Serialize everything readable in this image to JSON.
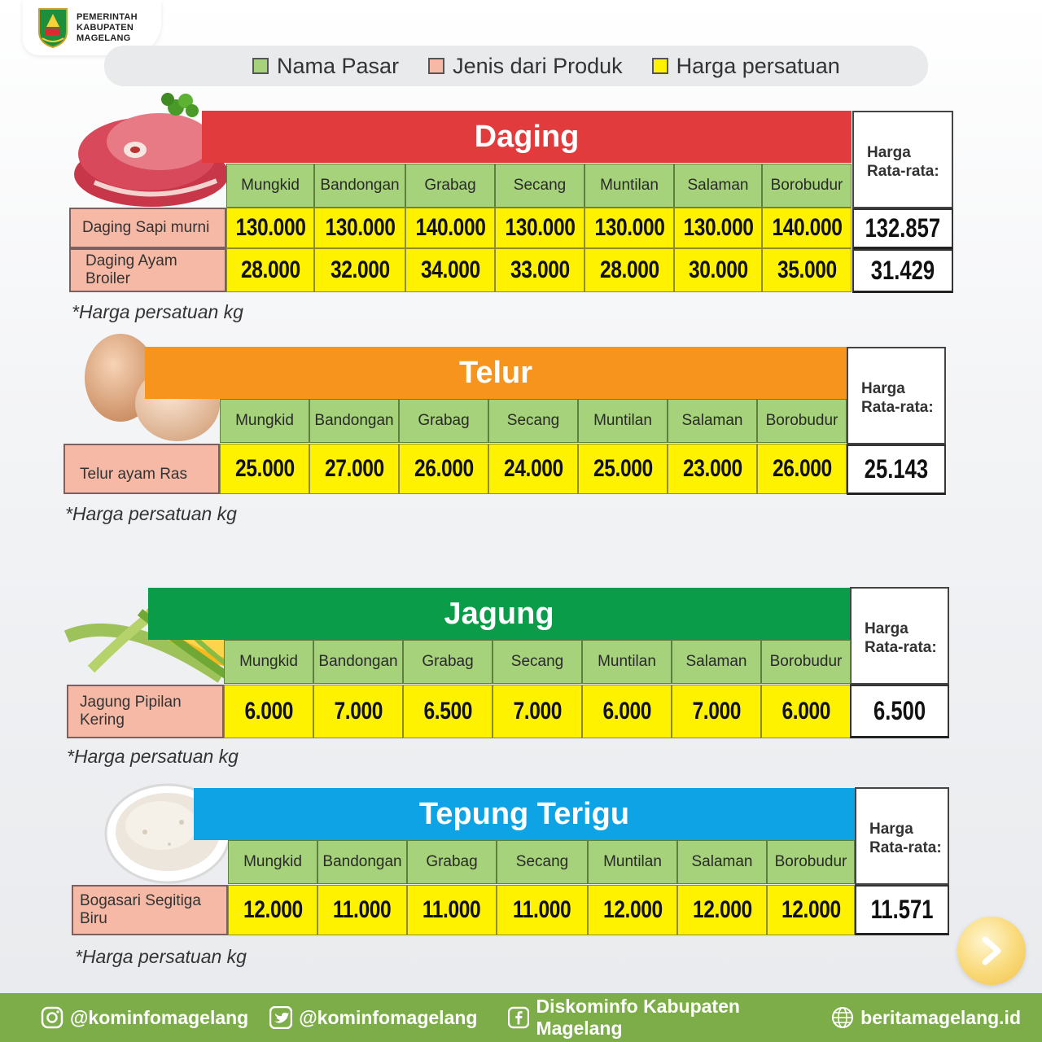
{
  "header": {
    "logo_lines": [
      "PEMERINTAH",
      "KABUPATEN",
      "MAGELANG"
    ]
  },
  "legend": [
    {
      "label": "Nama Pasar",
      "color": "#a5d27a"
    },
    {
      "label": "Jenis dari Produk",
      "color": "#f6b9a6"
    },
    {
      "label": "Harga persatuan",
      "color": "#fff200"
    }
  ],
  "avg_label_1": "Harga",
  "avg_label_2": "Rata-rata:",
  "markets": [
    "Mungkid",
    "Bandongan",
    "Grabag",
    "Secang",
    "Muntilan",
    "Salaman",
    "Borobudur"
  ],
  "sections": [
    {
      "title": "Daging",
      "color": "#e23b3e",
      "illustration": "meat-illustration",
      "note": "*Harga persatuan kg",
      "products": [
        {
          "name": "Daging Sapi murni",
          "prices": [
            "130.000",
            "130.000",
            "140.000",
            "130.000",
            "130.000",
            "130.000",
            "140.000"
          ],
          "average": "132.857"
        },
        {
          "name": "Daging Ayam Broiler",
          "prices": [
            "28.000",
            "32.000",
            "34.000",
            "33.000",
            "28.000",
            "30.000",
            "35.000"
          ],
          "average": "31.429"
        }
      ]
    },
    {
      "title": "Telur",
      "color": "#f7941d",
      "illustration": "egg-illustration",
      "note": "*Harga persatuan kg",
      "products": [
        {
          "name": "Telur ayam Ras",
          "prices": [
            "25.000",
            "27.000",
            "26.000",
            "24.000",
            "25.000",
            "23.000",
            "26.000"
          ],
          "average": "25.143"
        }
      ]
    },
    {
      "title": "Jagung",
      "color": "#0b9c4a",
      "illustration": "corn-illustration",
      "note": "*Harga persatuan kg",
      "products": [
        {
          "name": "Jagung Pipilan Kering",
          "prices": [
            "6.000",
            "7.000",
            "6.500",
            "7.000",
            "6.000",
            "7.000",
            "6.000"
          ],
          "average": "6.500"
        }
      ]
    },
    {
      "title": "Tepung Terigu",
      "color": "#0ea3e5",
      "illustration": "flour-illustration",
      "note": "*Harga persatuan kg",
      "products": [
        {
          "name": "Bogasari Segitiga Biru",
          "prices": [
            "12.000",
            "11.000",
            "11.000",
            "11.000",
            "12.000",
            "12.000",
            "12.000"
          ],
          "average": "11.571"
        }
      ]
    }
  ],
  "footer": [
    {
      "icon": "instagram-icon",
      "label": "@kominfomagelang"
    },
    {
      "icon": "twitter-icon",
      "label": "@kominfomagelang"
    },
    {
      "icon": "facebook-icon",
      "label": "Diskominfo Kabupaten Magelang"
    },
    {
      "icon": "globe-icon",
      "label": "beritamagelang.id"
    }
  ],
  "next_button_icon": "chevron-right-icon"
}
